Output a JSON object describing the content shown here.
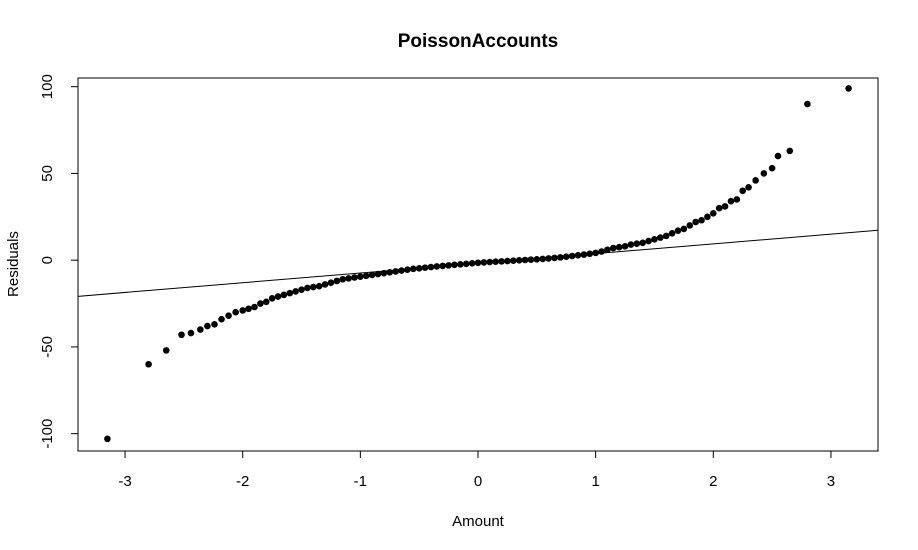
{
  "chart_data": {
    "type": "scatter",
    "title": "PoissonAccounts",
    "xlabel": "Amount",
    "ylabel": "Residuals",
    "xlim": [
      -3.4,
      3.4
    ],
    "ylim": [
      -110,
      105
    ],
    "x_ticks": [
      -3,
      -2,
      -1,
      0,
      1,
      2,
      3
    ],
    "y_ticks": [
      -100,
      -50,
      0,
      50,
      100
    ],
    "x_tick_labels": [
      "-3",
      "-2",
      "-1",
      "0",
      "1",
      "2",
      "3"
    ],
    "y_tick_labels": [
      "-100",
      "-50",
      "0",
      "50",
      "100"
    ],
    "grid": false,
    "reference_line": {
      "slope": 5.6,
      "intercept": -1.8
    },
    "points": [
      [
        -3.15,
        -103
      ],
      [
        -2.8,
        -60
      ],
      [
        -2.65,
        -52
      ],
      [
        -2.52,
        -43
      ],
      [
        -2.44,
        -42
      ],
      [
        -2.36,
        -40
      ],
      [
        -2.3,
        -38
      ],
      [
        -2.24,
        -37
      ],
      [
        -2.18,
        -34
      ],
      [
        -2.12,
        -32
      ],
      [
        -2.06,
        -30
      ],
      [
        -2.0,
        -29
      ],
      [
        -1.95,
        -28
      ],
      [
        -1.9,
        -27
      ],
      [
        -1.85,
        -25
      ],
      [
        -1.8,
        -24
      ],
      [
        -1.75,
        -22
      ],
      [
        -1.7,
        -21
      ],
      [
        -1.65,
        -20
      ],
      [
        -1.6,
        -19
      ],
      [
        -1.55,
        -18
      ],
      [
        -1.5,
        -17
      ],
      [
        -1.45,
        -16
      ],
      [
        -1.4,
        -15.5
      ],
      [
        -1.35,
        -15
      ],
      [
        -1.3,
        -14
      ],
      [
        -1.25,
        -13
      ],
      [
        -1.2,
        -12
      ],
      [
        -1.15,
        -11
      ],
      [
        -1.1,
        -10.5
      ],
      [
        -1.05,
        -10
      ],
      [
        -1.0,
        -9.5
      ],
      [
        -0.95,
        -9
      ],
      [
        -0.9,
        -8.5
      ],
      [
        -0.85,
        -8
      ],
      [
        -0.8,
        -7.5
      ],
      [
        -0.75,
        -7
      ],
      [
        -0.7,
        -6.5
      ],
      [
        -0.65,
        -6
      ],
      [
        -0.6,
        -5.5
      ],
      [
        -0.55,
        -5
      ],
      [
        -0.5,
        -4.7
      ],
      [
        -0.45,
        -4.3
      ],
      [
        -0.4,
        -4
      ],
      [
        -0.35,
        -3.6
      ],
      [
        -0.3,
        -3.3
      ],
      [
        -0.25,
        -3
      ],
      [
        -0.2,
        -2.7
      ],
      [
        -0.15,
        -2.4
      ],
      [
        -0.1,
        -2.1
      ],
      [
        -0.05,
        -1.8
      ],
      [
        0.0,
        -1.5
      ],
      [
        0.05,
        -1.3
      ],
      [
        0.1,
        -1.1
      ],
      [
        0.15,
        -0.9
      ],
      [
        0.2,
        -0.7
      ],
      [
        0.25,
        -0.5
      ],
      [
        0.3,
        -0.3
      ],
      [
        0.35,
        -0.1
      ],
      [
        0.4,
        0.1
      ],
      [
        0.45,
        0.3
      ],
      [
        0.5,
        0.5
      ],
      [
        0.55,
        0.7
      ],
      [
        0.6,
        1.0
      ],
      [
        0.65,
        1.3
      ],
      [
        0.7,
        1.6
      ],
      [
        0.75,
        2.0
      ],
      [
        0.8,
        2.4
      ],
      [
        0.85,
        2.8
      ],
      [
        0.9,
        3.2
      ],
      [
        0.95,
        3.7
      ],
      [
        1.0,
        4.2
      ],
      [
        1.05,
        5
      ],
      [
        1.1,
        6
      ],
      [
        1.15,
        7
      ],
      [
        1.2,
        7.5
      ],
      [
        1.25,
        8
      ],
      [
        1.3,
        9
      ],
      [
        1.35,
        9.5
      ],
      [
        1.4,
        10
      ],
      [
        1.45,
        11
      ],
      [
        1.5,
        12
      ],
      [
        1.55,
        13
      ],
      [
        1.6,
        14
      ],
      [
        1.65,
        15.5
      ],
      [
        1.7,
        17
      ],
      [
        1.75,
        18
      ],
      [
        1.8,
        20
      ],
      [
        1.85,
        22
      ],
      [
        1.9,
        23
      ],
      [
        1.95,
        25
      ],
      [
        2.0,
        27
      ],
      [
        2.05,
        30
      ],
      [
        2.1,
        31
      ],
      [
        2.15,
        34
      ],
      [
        2.2,
        35
      ],
      [
        2.25,
        40
      ],
      [
        2.3,
        42
      ],
      [
        2.36,
        46
      ],
      [
        2.43,
        50
      ],
      [
        2.5,
        53
      ],
      [
        2.55,
        60
      ],
      [
        2.65,
        63
      ],
      [
        2.8,
        90
      ],
      [
        3.15,
        99
      ]
    ]
  }
}
